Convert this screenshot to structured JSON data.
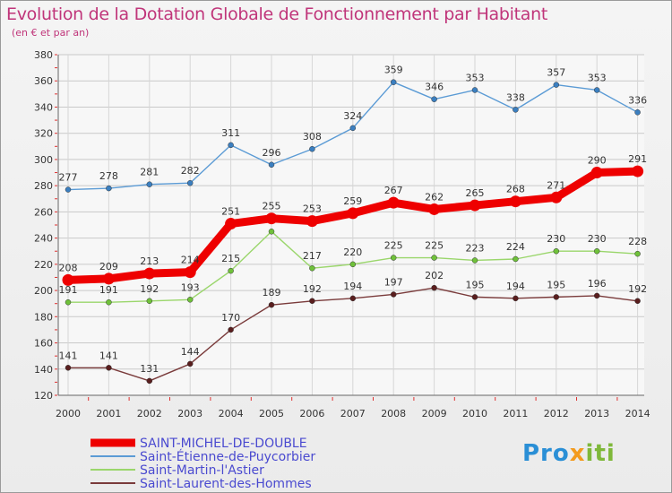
{
  "header": {
    "title": "Evolution de la Dotation Globale de Fonctionnement par Habitant",
    "subtitle": "(en € et par an)"
  },
  "logo": {
    "text": "Proxiti",
    "colors": [
      "#2a8fd6",
      "#f39b1e",
      "#7fb83a"
    ]
  },
  "chart_data": {
    "type": "line",
    "title": "Evolution de la Dotation Globale de Fonctionnement par Habitant",
    "subtitle": "(en € et par an)",
    "x": [
      "2000",
      "2001",
      "2002",
      "2003",
      "2004",
      "2005",
      "2006",
      "2007",
      "2008",
      "2009",
      "2010",
      "2011",
      "2012",
      "2013",
      "2014"
    ],
    "ylim": [
      120,
      380
    ],
    "yticks": [
      120,
      140,
      160,
      180,
      200,
      220,
      240,
      260,
      280,
      300,
      320,
      340,
      360,
      380
    ],
    "grid": true,
    "legend_position": "bottom-left",
    "series": [
      {
        "name": "Saint-Étienne-de-Puycorbier",
        "color": "#5b9bd5",
        "marker": "#3b7fc0",
        "emphasis": false,
        "values": [
          277,
          278,
          281,
          282,
          311,
          296,
          308,
          324,
          359,
          346,
          353,
          338,
          357,
          353,
          336
        ]
      },
      {
        "name": "Saint-Martin-l'Astier",
        "color": "#9ad66b",
        "marker": "#6fc13a",
        "emphasis": false,
        "values": [
          191,
          191,
          192,
          193,
          215,
          245,
          217,
          220,
          225,
          225,
          223,
          224,
          230,
          230,
          228
        ]
      },
      {
        "name": "Saint-Laurent-des-Hommes",
        "color": "#7a3b3b",
        "marker": "#5a1e1e",
        "emphasis": false,
        "values": [
          141,
          141,
          131,
          144,
          170,
          189,
          192,
          194,
          197,
          202,
          195,
          194,
          195,
          196,
          192
        ]
      },
      {
        "name": "SAINT-MICHEL-DE-DOUBLE",
        "color": "#ee0000",
        "marker": "#ee0000",
        "emphasis": true,
        "values": [
          208,
          209,
          213,
          214,
          251,
          255,
          253,
          259,
          267,
          262,
          265,
          268,
          271,
          290,
          291
        ]
      }
    ],
    "legend_order": [
      "SAINT-MICHEL-DE-DOUBLE",
      "Saint-Étienne-de-Puycorbier",
      "Saint-Martin-l'Astier",
      "Saint-Laurent-des-Hommes"
    ]
  }
}
